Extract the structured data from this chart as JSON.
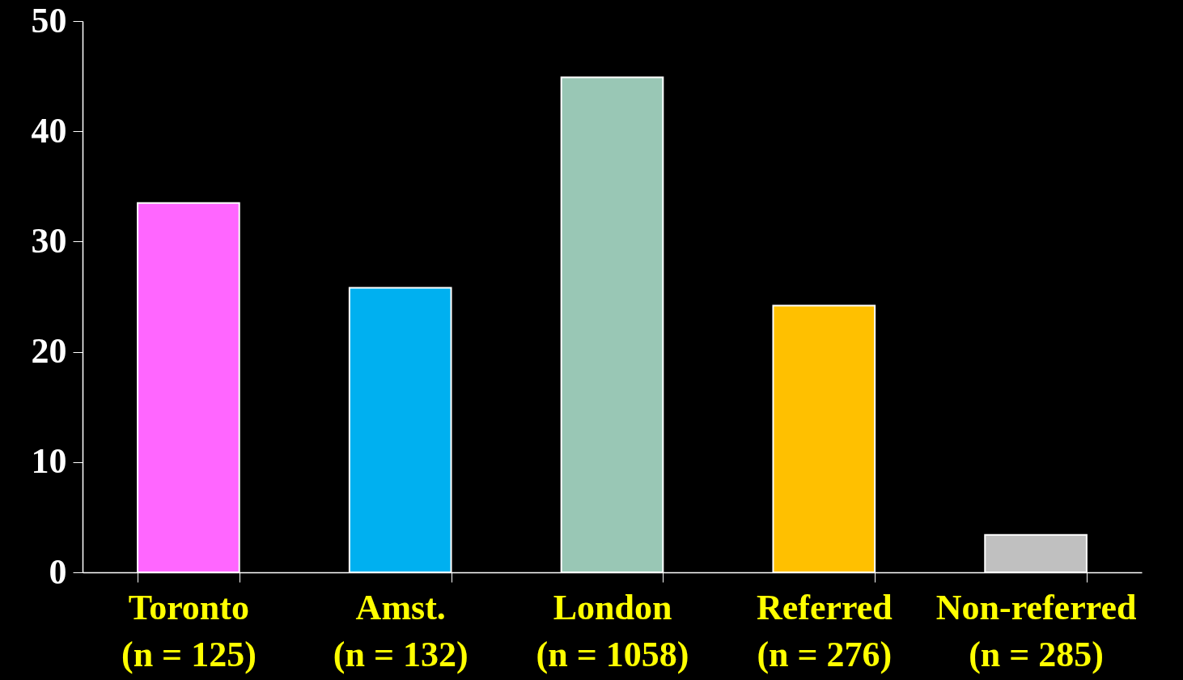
{
  "chart_data": {
    "type": "bar",
    "categories": [
      "Toronto\n(n = 125)",
      "Amst.\n(n = 132)",
      "London\n(n = 1058)",
      "Referred\n(n = 276)",
      "Non-referred\n(n = 285)"
    ],
    "values": [
      33.5,
      25.8,
      44.9,
      24.2,
      3.4
    ],
    "colors": [
      "#ff66ff",
      "#00b0f0",
      "#99c7b5",
      "#ffc000",
      "#c0c0c0"
    ],
    "ylim": [
      0,
      50
    ],
    "yticks": [
      0,
      10,
      20,
      30,
      40,
      50
    ],
    "grid": false,
    "legend": false
  }
}
